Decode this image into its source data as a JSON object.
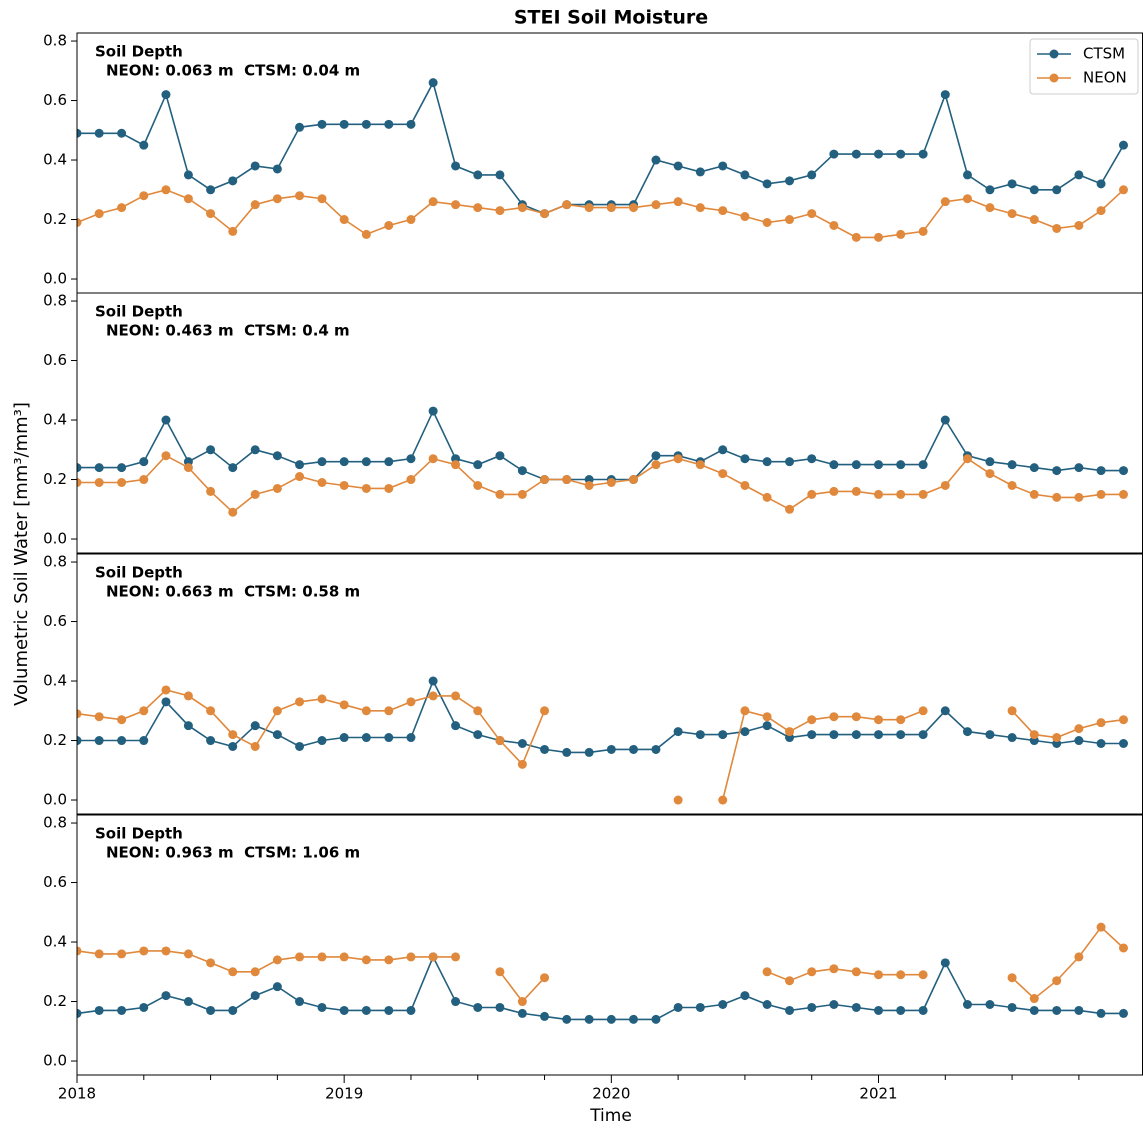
{
  "title": "STEI Soil Moisture",
  "ylabel": "Volumetric Soil Water [mm³/mm³]",
  "xlabel": "Time",
  "chart_data": [
    {
      "type": "line",
      "annotation": [
        "Soil Depth",
        "NEON: 0.063 m  CTSM: 0.04 m"
      ],
      "legend": "upper right",
      "x": [
        2018.0,
        2018.083,
        2018.167,
        2018.25,
        2018.333,
        2018.417,
        2018.5,
        2018.583,
        2018.667,
        2018.75,
        2018.833,
        2018.917,
        2019.0,
        2019.083,
        2019.167,
        2019.25,
        2019.333,
        2019.417,
        2019.5,
        2019.583,
        2019.667,
        2019.75,
        2019.833,
        2019.917,
        2020.0,
        2020.083,
        2020.167,
        2020.25,
        2020.333,
        2020.417,
        2020.5,
        2020.583,
        2020.667,
        2020.75,
        2020.833,
        2020.917,
        2021.0,
        2021.083,
        2021.167,
        2021.25,
        2021.333,
        2021.417,
        2021.5,
        2021.583,
        2021.667,
        2021.75,
        2021.833,
        2021.917
      ],
      "xlim": [
        2018,
        2021.99
      ],
      "xticks": [
        2018,
        2019,
        2020,
        2021
      ],
      "ylim": [
        -0.047,
        0.827
      ],
      "yticks": [
        {
          "value": 0,
          "label": "0.0"
        },
        0.2,
        0.4,
        0.6,
        0.8
      ],
      "series": [
        {
          "name": "CTSM",
          "color": "#23607f",
          "values": [
            0.49,
            0.49,
            0.49,
            0.45,
            0.62,
            0.35,
            0.3,
            0.33,
            0.38,
            0.37,
            0.51,
            0.52,
            0.52,
            0.52,
            0.52,
            0.52,
            0.66,
            0.38,
            0.35,
            0.35,
            0.25,
            0.22,
            0.25,
            0.25,
            0.25,
            0.25,
            0.4,
            0.38,
            0.36,
            0.38,
            0.35,
            0.32,
            0.33,
            0.35,
            0.42,
            0.42,
            0.42,
            0.42,
            0.42,
            0.62,
            0.35,
            0.3,
            0.32,
            0.3,
            0.3,
            0.35,
            0.32,
            0.45
          ]
        },
        {
          "name": "NEON",
          "color": "#e0883c",
          "values": [
            0.19,
            0.22,
            0.24,
            0.28,
            0.3,
            0.27,
            0.22,
            0.16,
            0.25,
            0.27,
            0.28,
            0.27,
            0.2,
            0.15,
            0.18,
            0.2,
            0.26,
            0.25,
            0.24,
            0.23,
            0.24,
            0.22,
            0.25,
            0.24,
            0.24,
            0.24,
            0.25,
            0.26,
            0.24,
            0.23,
            0.21,
            0.19,
            0.2,
            0.22,
            0.18,
            0.14,
            0.14,
            0.15,
            0.16,
            0.26,
            0.27,
            0.24,
            0.22,
            0.2,
            0.17,
            0.18,
            0.23,
            0.3
          ]
        }
      ]
    },
    {
      "type": "line",
      "annotation": [
        "Soil Depth",
        "NEON: 0.463 m  CTSM: 0.4 m"
      ],
      "x": [
        2018.0,
        2018.083,
        2018.167,
        2018.25,
        2018.333,
        2018.417,
        2018.5,
        2018.583,
        2018.667,
        2018.75,
        2018.833,
        2018.917,
        2019.0,
        2019.083,
        2019.167,
        2019.25,
        2019.333,
        2019.417,
        2019.5,
        2019.583,
        2019.667,
        2019.75,
        2019.833,
        2019.917,
        2020.0,
        2020.083,
        2020.167,
        2020.25,
        2020.333,
        2020.417,
        2020.5,
        2020.583,
        2020.667,
        2020.75,
        2020.833,
        2020.917,
        2021.0,
        2021.083,
        2021.167,
        2021.25,
        2021.333,
        2021.417,
        2021.5,
        2021.583,
        2021.667,
        2021.75,
        2021.833,
        2021.917
      ],
      "xlim": [
        2018,
        2021.99
      ],
      "xticks": [
        2018,
        2019,
        2020,
        2021
      ],
      "ylim": [
        -0.047,
        0.827
      ],
      "yticks": [
        {
          "value": 0,
          "label": "0.0"
        },
        0.2,
        0.4,
        0.6,
        0.8
      ],
      "series": [
        {
          "name": "CTSM",
          "color": "#23607f",
          "values": [
            0.24,
            0.24,
            0.24,
            0.26,
            0.4,
            0.26,
            0.3,
            0.24,
            0.3,
            0.28,
            0.25,
            0.26,
            0.26,
            0.26,
            0.26,
            0.27,
            0.43,
            0.27,
            0.25,
            0.28,
            0.23,
            0.2,
            0.2,
            0.2,
            0.2,
            0.2,
            0.28,
            0.28,
            0.26,
            0.3,
            0.27,
            0.26,
            0.26,
            0.27,
            0.25,
            0.25,
            0.25,
            0.25,
            0.25,
            0.4,
            0.28,
            0.26,
            0.25,
            0.24,
            0.23,
            0.24,
            0.23,
            0.23
          ]
        },
        {
          "name": "NEON",
          "color": "#e0883c",
          "values": [
            0.19,
            0.19,
            0.19,
            0.2,
            0.28,
            0.24,
            0.16,
            0.09,
            0.15,
            0.17,
            0.21,
            0.19,
            0.18,
            0.17,
            0.17,
            0.2,
            0.27,
            0.25,
            0.18,
            0.15,
            0.15,
            0.2,
            0.2,
            0.18,
            0.19,
            0.2,
            0.25,
            0.27,
            0.25,
            0.22,
            0.18,
            0.14,
            0.1,
            0.15,
            0.16,
            0.16,
            0.15,
            0.15,
            0.15,
            0.18,
            0.27,
            0.22,
            0.18,
            0.15,
            0.14,
            0.14,
            0.15,
            0.15
          ]
        }
      ]
    },
    {
      "type": "line",
      "annotation": [
        "Soil Depth",
        "NEON: 0.663 m  CTSM: 0.58 m"
      ],
      "x": [
        2018.0,
        2018.083,
        2018.167,
        2018.25,
        2018.333,
        2018.417,
        2018.5,
        2018.583,
        2018.667,
        2018.75,
        2018.833,
        2018.917,
        2019.0,
        2019.083,
        2019.167,
        2019.25,
        2019.333,
        2019.417,
        2019.5,
        2019.583,
        2019.667,
        2019.75,
        2019.833,
        2019.917,
        2020.0,
        2020.083,
        2020.167,
        2020.25,
        2020.333,
        2020.417,
        2020.5,
        2020.583,
        2020.667,
        2020.75,
        2020.833,
        2020.917,
        2021.0,
        2021.083,
        2021.167,
        2021.25,
        2021.333,
        2021.417,
        2021.5,
        2021.583,
        2021.667,
        2021.75,
        2021.833,
        2021.917
      ],
      "xlim": [
        2018,
        2021.99
      ],
      "xticks": [
        2018,
        2019,
        2020,
        2021
      ],
      "ylim": [
        -0.047,
        0.827
      ],
      "yticks": [
        {
          "value": 0,
          "label": "0.0"
        },
        0.2,
        0.4,
        0.6,
        0.8
      ],
      "series": [
        {
          "name": "CTSM",
          "color": "#23607f",
          "values": [
            0.2,
            0.2,
            0.2,
            0.2,
            0.33,
            0.25,
            0.2,
            0.18,
            0.25,
            0.22,
            0.18,
            0.2,
            0.21,
            0.21,
            0.21,
            0.21,
            0.4,
            0.25,
            0.22,
            0.2,
            0.19,
            0.17,
            0.16,
            0.16,
            0.17,
            0.17,
            0.17,
            0.23,
            0.22,
            0.22,
            0.23,
            0.25,
            0.21,
            0.22,
            0.22,
            0.22,
            0.22,
            0.22,
            0.22,
            0.3,
            0.23,
            0.22,
            0.21,
            0.2,
            0.19,
            0.2,
            0.19,
            0.19
          ]
        },
        {
          "name": "NEON",
          "color": "#e0883c",
          "values": [
            0.29,
            0.28,
            0.27,
            0.3,
            0.37,
            0.35,
            0.3,
            0.22,
            0.18,
            0.3,
            0.33,
            0.34,
            0.32,
            0.3,
            0.3,
            0.33,
            0.35,
            0.35,
            0.3,
            0.2,
            0.12,
            0.3,
            null,
            null,
            null,
            null,
            null,
            0,
            null,
            0,
            0.3,
            0.28,
            0.23,
            0.27,
            0.28,
            0.28,
            0.27,
            0.27,
            0.3,
            null,
            null,
            null,
            0.3,
            0.22,
            0.21,
            0.24,
            0.26,
            0.27
          ]
        }
      ]
    },
    {
      "type": "line",
      "annotation": [
        "Soil Depth",
        "NEON: 0.963 m  CTSM: 1.06 m"
      ],
      "show_xtick_labels": true,
      "x": [
        2018.0,
        2018.083,
        2018.167,
        2018.25,
        2018.333,
        2018.417,
        2018.5,
        2018.583,
        2018.667,
        2018.75,
        2018.833,
        2018.917,
        2019.0,
        2019.083,
        2019.167,
        2019.25,
        2019.333,
        2019.417,
        2019.5,
        2019.583,
        2019.667,
        2019.75,
        2019.833,
        2019.917,
        2020.0,
        2020.083,
        2020.167,
        2020.25,
        2020.333,
        2020.417,
        2020.5,
        2020.583,
        2020.667,
        2020.75,
        2020.833,
        2020.917,
        2021.0,
        2021.083,
        2021.167,
        2021.25,
        2021.333,
        2021.417,
        2021.5,
        2021.583,
        2021.667,
        2021.75,
        2021.833,
        2021.917
      ],
      "xlim": [
        2018,
        2021.99
      ],
      "xticks": [
        2018,
        2019,
        2020,
        2021
      ],
      "xminor_ticks": [
        2018.25,
        2018.5,
        2018.75,
        2019.25,
        2019.5,
        2019.75,
        2020.25,
        2020.5,
        2020.75,
        2021.25,
        2021.5,
        2021.75
      ],
      "ylim": [
        -0.047,
        0.827
      ],
      "yticks": [
        {
          "value": 0,
          "label": "0.0"
        },
        0.2,
        0.4,
        0.6,
        0.8
      ],
      "series": [
        {
          "name": "CTSM",
          "color": "#23607f",
          "values": [
            0.16,
            0.17,
            0.17,
            0.18,
            0.22,
            0.2,
            0.17,
            0.17,
            0.22,
            0.25,
            0.2,
            0.18,
            0.17,
            0.17,
            0.17,
            0.17,
            0.35,
            0.2,
            0.18,
            0.18,
            0.16,
            0.15,
            0.14,
            0.14,
            0.14,
            0.14,
            0.14,
            0.18,
            0.18,
            0.19,
            0.22,
            0.19,
            0.17,
            0.18,
            0.19,
            0.18,
            0.17,
            0.17,
            0.17,
            0.33,
            0.19,
            0.19,
            0.18,
            0.17,
            0.17,
            0.17,
            0.16,
            0.16
          ]
        },
        {
          "name": "NEON",
          "color": "#e0883c",
          "values": [
            0.37,
            0.36,
            0.36,
            0.37,
            0.37,
            0.36,
            0.33,
            0.3,
            0.3,
            0.34,
            0.35,
            0.35,
            0.35,
            0.34,
            0.34,
            0.35,
            0.35,
            0.35,
            null,
            0.3,
            0.2,
            0.28,
            null,
            null,
            null,
            null,
            null,
            null,
            null,
            null,
            null,
            0.3,
            0.27,
            0.3,
            0.31,
            0.3,
            0.29,
            0.29,
            0.29,
            null,
            null,
            null,
            0.28,
            0.21,
            0.27,
            0.35,
            0.45,
            0.38
          ]
        }
      ]
    }
  ]
}
